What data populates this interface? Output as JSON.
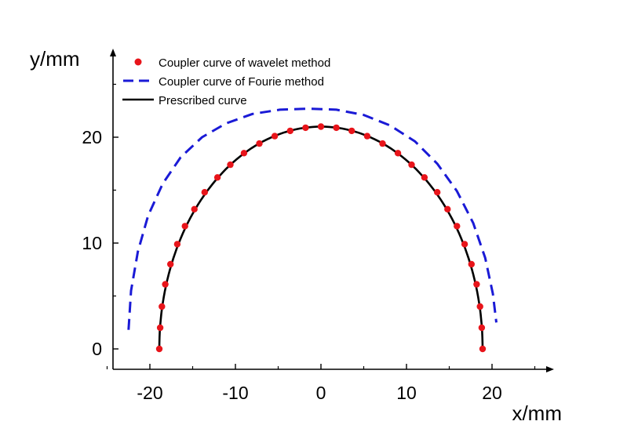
{
  "chart_data": {
    "type": "line",
    "xlabel": "x/mm",
    "ylabel": "y/mm",
    "xlim": [
      -25,
      26
    ],
    "ylim": [
      -2,
      28
    ],
    "x_ticks": [
      -20,
      -10,
      0,
      10,
      20
    ],
    "y_ticks": [
      0,
      10,
      20
    ],
    "x_tick_labels": [
      "-20",
      "-10",
      "0",
      "10",
      "20"
    ],
    "y_tick_labels": [
      "0",
      "10",
      "20"
    ],
    "grid": false,
    "legend_position": "top-left",
    "series": [
      {
        "name": "Coupler curve of wavelet method",
        "style": "points",
        "color": "#e8141a",
        "x": [
          -18.9,
          -18.8,
          -18.6,
          -18.2,
          -17.6,
          -16.8,
          -15.9,
          -14.8,
          -13.6,
          -12.1,
          -10.6,
          -9.0,
          -7.2,
          -5.4,
          -3.6,
          -1.8,
          0.0,
          1.8,
          3.6,
          5.4,
          7.2,
          9.0,
          10.6,
          12.1,
          13.6,
          14.8,
          15.9,
          16.8,
          17.6,
          18.2,
          18.6,
          18.8,
          18.9
        ],
        "y": [
          0.0,
          2.0,
          4.0,
          6.1,
          8.0,
          9.9,
          11.6,
          13.2,
          14.8,
          16.2,
          17.4,
          18.5,
          19.4,
          20.1,
          20.6,
          20.9,
          21.0,
          20.9,
          20.6,
          20.1,
          19.4,
          18.5,
          17.4,
          16.2,
          14.8,
          13.2,
          11.6,
          9.9,
          8.0,
          6.1,
          4.0,
          2.0,
          0.0
        ]
      },
      {
        "name": "Coupler curve of Fourie method",
        "style": "dashed",
        "color": "#1a1ad6",
        "x": [
          -22.5,
          -22.2,
          -21.4,
          -20.2,
          -18.5,
          -16.4,
          -13.9,
          -11.1,
          -8.0,
          -4.8,
          -1.5,
          1.8,
          5.0,
          8.1,
          11.0,
          13.6,
          15.9,
          17.8,
          19.2,
          20.1,
          20.5
        ],
        "y": [
          1.8,
          5.5,
          9.2,
          12.6,
          15.6,
          18.1,
          20.0,
          21.3,
          22.2,
          22.6,
          22.7,
          22.6,
          22.1,
          21.1,
          19.6,
          17.5,
          14.9,
          11.9,
          8.6,
          5.2,
          2.5
        ]
      },
      {
        "name": "Prescribed curve",
        "style": "solid",
        "color": "#000000",
        "ellipse": {
          "cx": 0,
          "cy": 0,
          "rx": 18.9,
          "ry": 21.0
        }
      }
    ]
  }
}
